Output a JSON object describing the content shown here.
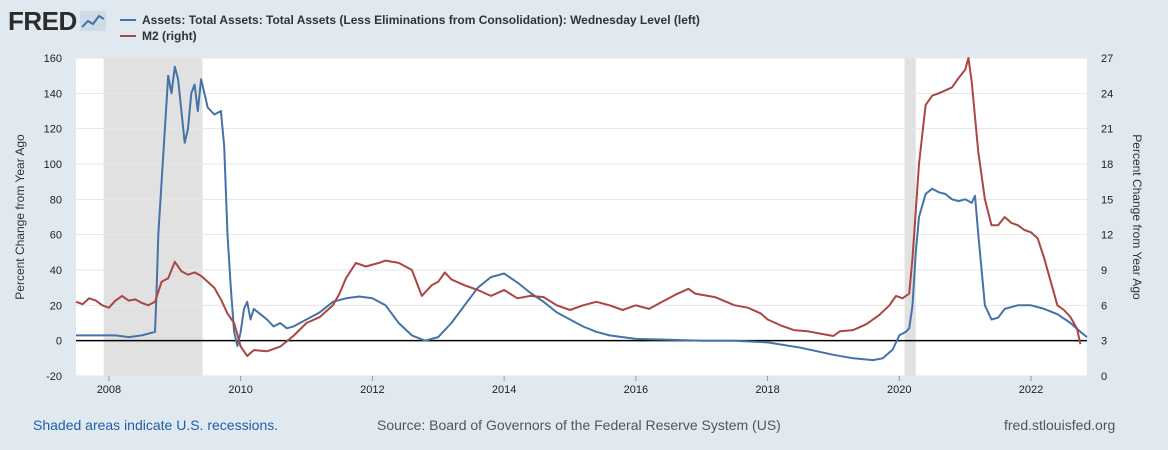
{
  "logo": {
    "text": "FRED",
    "icon": "line-graph-icon"
  },
  "legend": [
    {
      "label": "Assets: Total Assets: Total Assets (Less Eliminations from Consolidation): Wednesday Level (left)",
      "color": "#4572a7"
    },
    {
      "label": "M2 (right)",
      "color": "#aa4643"
    }
  ],
  "footer": {
    "recessions_note": "Shaded areas indicate U.S. recessions.",
    "source": "Source: Board of Governors of the Federal Reserve System (US)",
    "site": "fred.stlouisfed.org"
  },
  "chart_data": {
    "type": "line",
    "ylabel_left": "Percent Change from Year Ago",
    "ylabel_right": "Percent Change from Year Ago",
    "xlim": [
      2007.5,
      2022.85
    ],
    "ylim_left": [
      -20,
      160
    ],
    "ylim_right": [
      0,
      27
    ],
    "x_ticks": [
      "2008",
      "2010",
      "2012",
      "2014",
      "2016",
      "2018",
      "2020",
      "2022"
    ],
    "y_left_ticks": [
      -20,
      0,
      20,
      40,
      60,
      80,
      100,
      120,
      140,
      160
    ],
    "y_right_ticks": [
      0,
      3,
      6,
      9,
      12,
      15,
      18,
      21,
      24,
      27
    ],
    "zero_line": 0,
    "grid": "horizontal",
    "recessions": [
      [
        2007.92,
        2009.42
      ],
      [
        2020.08,
        2020.25
      ]
    ],
    "series": [
      {
        "name": "Assets: Total Assets: Total Assets (Less Eliminations from Consolidation): Wednesday Level (left)",
        "axis": "left",
        "color": "#4572a7",
        "points": [
          [
            2007.5,
            3
          ],
          [
            2007.7,
            3
          ],
          [
            2007.9,
            3
          ],
          [
            2008.1,
            3
          ],
          [
            2008.3,
            2
          ],
          [
            2008.5,
            3
          ],
          [
            2008.6,
            4
          ],
          [
            2008.7,
            5
          ],
          [
            2008.72,
            25
          ],
          [
            2008.75,
            60
          ],
          [
            2008.8,
            90
          ],
          [
            2008.85,
            120
          ],
          [
            2008.9,
            150
          ],
          [
            2008.95,
            140
          ],
          [
            2009.0,
            155
          ],
          [
            2009.05,
            148
          ],
          [
            2009.1,
            130
          ],
          [
            2009.15,
            112
          ],
          [
            2009.2,
            120
          ],
          [
            2009.25,
            140
          ],
          [
            2009.3,
            145
          ],
          [
            2009.35,
            130
          ],
          [
            2009.4,
            148
          ],
          [
            2009.45,
            140
          ],
          [
            2009.5,
            132
          ],
          [
            2009.6,
            128
          ],
          [
            2009.7,
            130
          ],
          [
            2009.75,
            110
          ],
          [
            2009.8,
            60
          ],
          [
            2009.85,
            30
          ],
          [
            2009.9,
            5
          ],
          [
            2009.95,
            -3
          ],
          [
            2010.0,
            5
          ],
          [
            2010.05,
            18
          ],
          [
            2010.1,
            22
          ],
          [
            2010.15,
            12
          ],
          [
            2010.2,
            18
          ],
          [
            2010.3,
            15
          ],
          [
            2010.4,
            12
          ],
          [
            2010.5,
            8
          ],
          [
            2010.6,
            10
          ],
          [
            2010.7,
            7
          ],
          [
            2010.8,
            8
          ],
          [
            2010.9,
            10
          ],
          [
            2011.0,
            12
          ],
          [
            2011.2,
            16
          ],
          [
            2011.4,
            22
          ],
          [
            2011.6,
            24
          ],
          [
            2011.8,
            25
          ],
          [
            2012.0,
            24
          ],
          [
            2012.2,
            20
          ],
          [
            2012.4,
            10
          ],
          [
            2012.6,
            3
          ],
          [
            2012.8,
            0
          ],
          [
            2013.0,
            2
          ],
          [
            2013.2,
            10
          ],
          [
            2013.4,
            20
          ],
          [
            2013.6,
            30
          ],
          [
            2013.8,
            36
          ],
          [
            2014.0,
            38
          ],
          [
            2014.2,
            33
          ],
          [
            2014.4,
            27
          ],
          [
            2014.6,
            22
          ],
          [
            2014.8,
            16
          ],
          [
            2015.0,
            12
          ],
          [
            2015.2,
            8
          ],
          [
            2015.4,
            5
          ],
          [
            2015.6,
            3
          ],
          [
            2015.8,
            2
          ],
          [
            2016.0,
            1
          ],
          [
            2016.5,
            0.5
          ],
          [
            2017.0,
            0
          ],
          [
            2017.5,
            0
          ],
          [
            2018.0,
            -1
          ],
          [
            2018.5,
            -4
          ],
          [
            2019.0,
            -8
          ],
          [
            2019.3,
            -10
          ],
          [
            2019.6,
            -11
          ],
          [
            2019.75,
            -10
          ],
          [
            2019.9,
            -5
          ],
          [
            2020.0,
            3
          ],
          [
            2020.1,
            5
          ],
          [
            2020.15,
            7
          ],
          [
            2020.2,
            20
          ],
          [
            2020.25,
            50
          ],
          [
            2020.3,
            70
          ],
          [
            2020.4,
            83
          ],
          [
            2020.5,
            86
          ],
          [
            2020.6,
            84
          ],
          [
            2020.7,
            83
          ],
          [
            2020.8,
            80
          ],
          [
            2020.9,
            79
          ],
          [
            2021.0,
            80
          ],
          [
            2021.1,
            78
          ],
          [
            2021.15,
            82
          ],
          [
            2021.2,
            60
          ],
          [
            2021.25,
            40
          ],
          [
            2021.3,
            20
          ],
          [
            2021.4,
            12
          ],
          [
            2021.5,
            13
          ],
          [
            2021.6,
            18
          ],
          [
            2021.8,
            20
          ],
          [
            2022.0,
            20
          ],
          [
            2022.2,
            18
          ],
          [
            2022.4,
            15
          ],
          [
            2022.6,
            10
          ],
          [
            2022.75,
            5
          ],
          [
            2022.85,
            2
          ]
        ]
      },
      {
        "name": "M2 (right)",
        "axis": "right",
        "color": "#aa4643",
        "points": [
          [
            2007.5,
            6.3
          ],
          [
            2007.6,
            6.1
          ],
          [
            2007.7,
            6.6
          ],
          [
            2007.8,
            6.4
          ],
          [
            2007.9,
            6.0
          ],
          [
            2008.0,
            5.8
          ],
          [
            2008.1,
            6.4
          ],
          [
            2008.2,
            6.8
          ],
          [
            2008.3,
            6.4
          ],
          [
            2008.4,
            6.5
          ],
          [
            2008.5,
            6.2
          ],
          [
            2008.6,
            6.0
          ],
          [
            2008.7,
            6.3
          ],
          [
            2008.8,
            8.0
          ],
          [
            2008.9,
            8.3
          ],
          [
            2009.0,
            9.7
          ],
          [
            2009.1,
            8.9
          ],
          [
            2009.2,
            8.6
          ],
          [
            2009.3,
            8.8
          ],
          [
            2009.4,
            8.5
          ],
          [
            2009.5,
            8.0
          ],
          [
            2009.6,
            7.5
          ],
          [
            2009.7,
            6.5
          ],
          [
            2009.8,
            5.3
          ],
          [
            2009.9,
            4.5
          ],
          [
            2010.0,
            2.5
          ],
          [
            2010.1,
            1.7
          ],
          [
            2010.2,
            2.2
          ],
          [
            2010.4,
            2.1
          ],
          [
            2010.6,
            2.5
          ],
          [
            2010.8,
            3.4
          ],
          [
            2011.0,
            4.5
          ],
          [
            2011.2,
            5.0
          ],
          [
            2011.4,
            6.0
          ],
          [
            2011.5,
            7.0
          ],
          [
            2011.6,
            8.3
          ],
          [
            2011.75,
            9.6
          ],
          [
            2011.9,
            9.3
          ],
          [
            2012.1,
            9.6
          ],
          [
            2012.2,
            9.8
          ],
          [
            2012.4,
            9.6
          ],
          [
            2012.6,
            9.0
          ],
          [
            2012.75,
            6.8
          ],
          [
            2012.9,
            7.7
          ],
          [
            2013.0,
            8.0
          ],
          [
            2013.1,
            8.8
          ],
          [
            2013.2,
            8.2
          ],
          [
            2013.4,
            7.7
          ],
          [
            2013.6,
            7.3
          ],
          [
            2013.8,
            6.8
          ],
          [
            2014.0,
            7.3
          ],
          [
            2014.2,
            6.6
          ],
          [
            2014.4,
            6.8
          ],
          [
            2014.6,
            6.7
          ],
          [
            2014.8,
            6.0
          ],
          [
            2015.0,
            5.6
          ],
          [
            2015.2,
            6.0
          ],
          [
            2015.4,
            6.3
          ],
          [
            2015.6,
            6.0
          ],
          [
            2015.8,
            5.6
          ],
          [
            2016.0,
            6.0
          ],
          [
            2016.2,
            5.7
          ],
          [
            2016.4,
            6.3
          ],
          [
            2016.6,
            6.9
          ],
          [
            2016.8,
            7.4
          ],
          [
            2016.9,
            7.0
          ],
          [
            2017.2,
            6.7
          ],
          [
            2017.5,
            6.0
          ],
          [
            2017.7,
            5.8
          ],
          [
            2017.9,
            5.3
          ],
          [
            2018.0,
            4.8
          ],
          [
            2018.2,
            4.3
          ],
          [
            2018.4,
            3.9
          ],
          [
            2018.6,
            3.8
          ],
          [
            2018.8,
            3.6
          ],
          [
            2019.0,
            3.4
          ],
          [
            2019.1,
            3.8
          ],
          [
            2019.3,
            3.9
          ],
          [
            2019.5,
            4.4
          ],
          [
            2019.7,
            5.2
          ],
          [
            2019.85,
            6.0
          ],
          [
            2019.95,
            6.8
          ],
          [
            2020.05,
            6.6
          ],
          [
            2020.15,
            7.0
          ],
          [
            2020.2,
            10.0
          ],
          [
            2020.3,
            18.0
          ],
          [
            2020.4,
            23.0
          ],
          [
            2020.5,
            23.8
          ],
          [
            2020.6,
            24.0
          ],
          [
            2020.8,
            24.5
          ],
          [
            2020.9,
            25.3
          ],
          [
            2021.0,
            26.0
          ],
          [
            2021.05,
            27.0
          ],
          [
            2021.1,
            25.0
          ],
          [
            2021.2,
            19.0
          ],
          [
            2021.3,
            15.0
          ],
          [
            2021.4,
            12.8
          ],
          [
            2021.5,
            12.8
          ],
          [
            2021.6,
            13.5
          ],
          [
            2021.7,
            13.0
          ],
          [
            2021.8,
            12.8
          ],
          [
            2021.9,
            12.4
          ],
          [
            2022.0,
            12.2
          ],
          [
            2022.1,
            11.7
          ],
          [
            2022.2,
            10.0
          ],
          [
            2022.3,
            8.0
          ],
          [
            2022.4,
            6.0
          ],
          [
            2022.5,
            5.6
          ],
          [
            2022.6,
            5.0
          ],
          [
            2022.7,
            4.0
          ],
          [
            2022.75,
            2.7
          ]
        ]
      }
    ]
  }
}
